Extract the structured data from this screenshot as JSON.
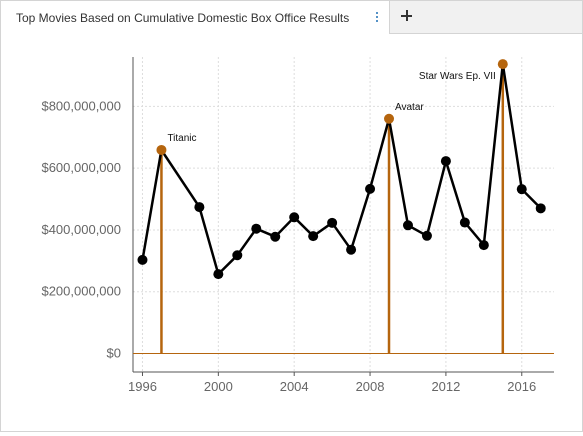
{
  "tab": {
    "title": "Top Movies Based on Cumulative Domestic Box Office Results",
    "menu_icon": "kebab-menu-icon",
    "add_icon": "plus-icon"
  },
  "chart_data": {
    "type": "line",
    "title": "",
    "xlabel": "",
    "ylabel": "",
    "xlim": [
      1995.5,
      2017.7
    ],
    "ylim": [
      -60000000,
      960000000
    ],
    "x_ticks": [
      1996,
      2000,
      2004,
      2008,
      2012,
      2016
    ],
    "y_ticks": [
      0,
      200000000,
      400000000,
      600000000,
      800000000
    ],
    "y_tick_labels": [
      "$0",
      "$200,000,000",
      "$400,000,000",
      "$600,000,000",
      "$800,000,000"
    ],
    "grid": true,
    "series": [
      {
        "x": [
          1996,
          1997,
          1998,
          1999,
          2000,
          2001,
          2002,
          2003,
          2004,
          2005,
          2006,
          2007,
          2008,
          2009,
          2010,
          2011,
          2012,
          2013,
          2014,
          2015,
          2016,
          2017
        ],
        "y": [
          303000000,
          659000000,
          null,
          474000000,
          257000000,
          318000000,
          404000000,
          378000000,
          441000000,
          380000000,
          423000000,
          336000000,
          533000000,
          760000000,
          415000000,
          381000000,
          623000000,
          424000000,
          351000000,
          937000000,
          532000000,
          470000000
        ]
      }
    ],
    "highlights": [
      {
        "x": 1997,
        "y": 659000000,
        "label": "Titanic"
      },
      {
        "x": 2009,
        "y": 760000000,
        "label": "Avatar"
      },
      {
        "x": 2015,
        "y": 937000000,
        "label": "Star Wars Ep. VII"
      }
    ],
    "colors": {
      "line": "#000000",
      "highlight": "#b5650e",
      "axis": "#555555",
      "grid": "#dddddd"
    }
  }
}
